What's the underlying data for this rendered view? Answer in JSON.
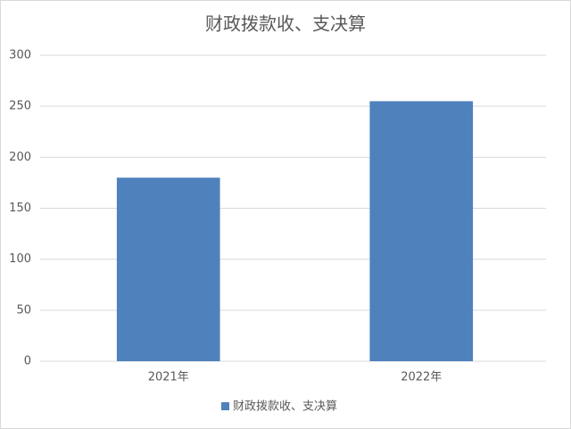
{
  "chart_data": {
    "type": "bar",
    "title": "财政拨款收、支决算",
    "categories": [
      "2021年",
      "2022年"
    ],
    "series": [
      {
        "name": "财政拨款收、支决算",
        "color": "#4f81bd",
        "values": [
          180,
          255
        ]
      }
    ],
    "ylim": [
      0,
      300
    ],
    "yticks": [
      0,
      50,
      100,
      150,
      200,
      250,
      300
    ],
    "grid": true,
    "legend": "bottom"
  }
}
